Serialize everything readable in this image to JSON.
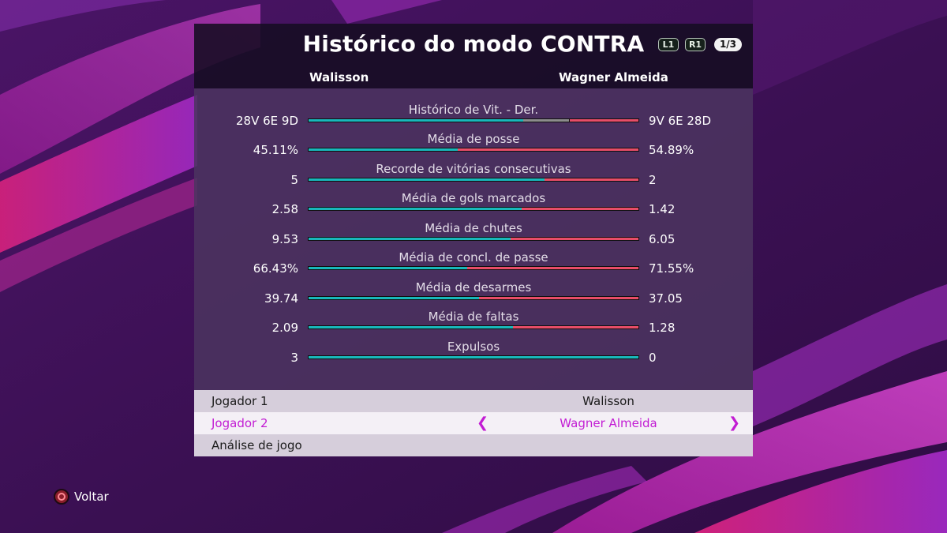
{
  "header": {
    "title": "Histórico do modo CONTRA",
    "btn_l1": "L1",
    "btn_r1": "R1",
    "page_indicator": "1/3"
  },
  "players": {
    "p1": "Walisson",
    "p2": "Wagner Almeida"
  },
  "colors": {
    "p1_bar": "#18b8bb",
    "p2_bar": "#e84d68",
    "draw_bar": "#8c8c8c",
    "highlight": "#c21cd3"
  },
  "stats": [
    {
      "label": "Histórico de Vit. - Der.",
      "left": "28V 6E 9D",
      "right": "9V 6E 28D",
      "left_share": 28,
      "draw_share": 6,
      "right_share": 9
    },
    {
      "label": "Média de posse",
      "left": "45.11%",
      "right": "54.89%",
      "left_share": 45.11,
      "right_share": 54.89
    },
    {
      "label": "Recorde de vitórias consecutivas",
      "left": "5",
      "right": "2",
      "left_share": 5,
      "right_share": 2
    },
    {
      "label": "Média de gols marcados",
      "left": "2.58",
      "right": "1.42",
      "left_share": 2.58,
      "right_share": 1.42
    },
    {
      "label": "Média de chutes",
      "left": "9.53",
      "right": "6.05",
      "left_share": 9.53,
      "right_share": 6.05
    },
    {
      "label": "Média de concl. de passe",
      "left": "66.43%",
      "right": "71.55%",
      "left_share": 66.43,
      "right_share": 71.55
    },
    {
      "label": "Média de desarmes",
      "left": "39.74",
      "right": "37.05",
      "left_share": 39.74,
      "right_share": 37.05
    },
    {
      "label": "Média de faltas",
      "left": "2.09",
      "right": "1.28",
      "left_share": 2.09,
      "right_share": 1.28
    },
    {
      "label": "Expulsos",
      "left": "3",
      "right": "0",
      "left_share": 3,
      "right_share": 0
    }
  ],
  "menu": [
    {
      "label": "Jogador 1",
      "value": "Walisson",
      "selected": false
    },
    {
      "label": "Jogador 2",
      "value": "Wagner Almeida",
      "selected": true
    },
    {
      "label": "Análise de jogo",
      "value": "",
      "selected": false
    }
  ],
  "menu_arrows": {
    "left": "❮",
    "right": "❯"
  },
  "footer": {
    "back_label": "Voltar",
    "back_icon": "circle-button-icon"
  }
}
